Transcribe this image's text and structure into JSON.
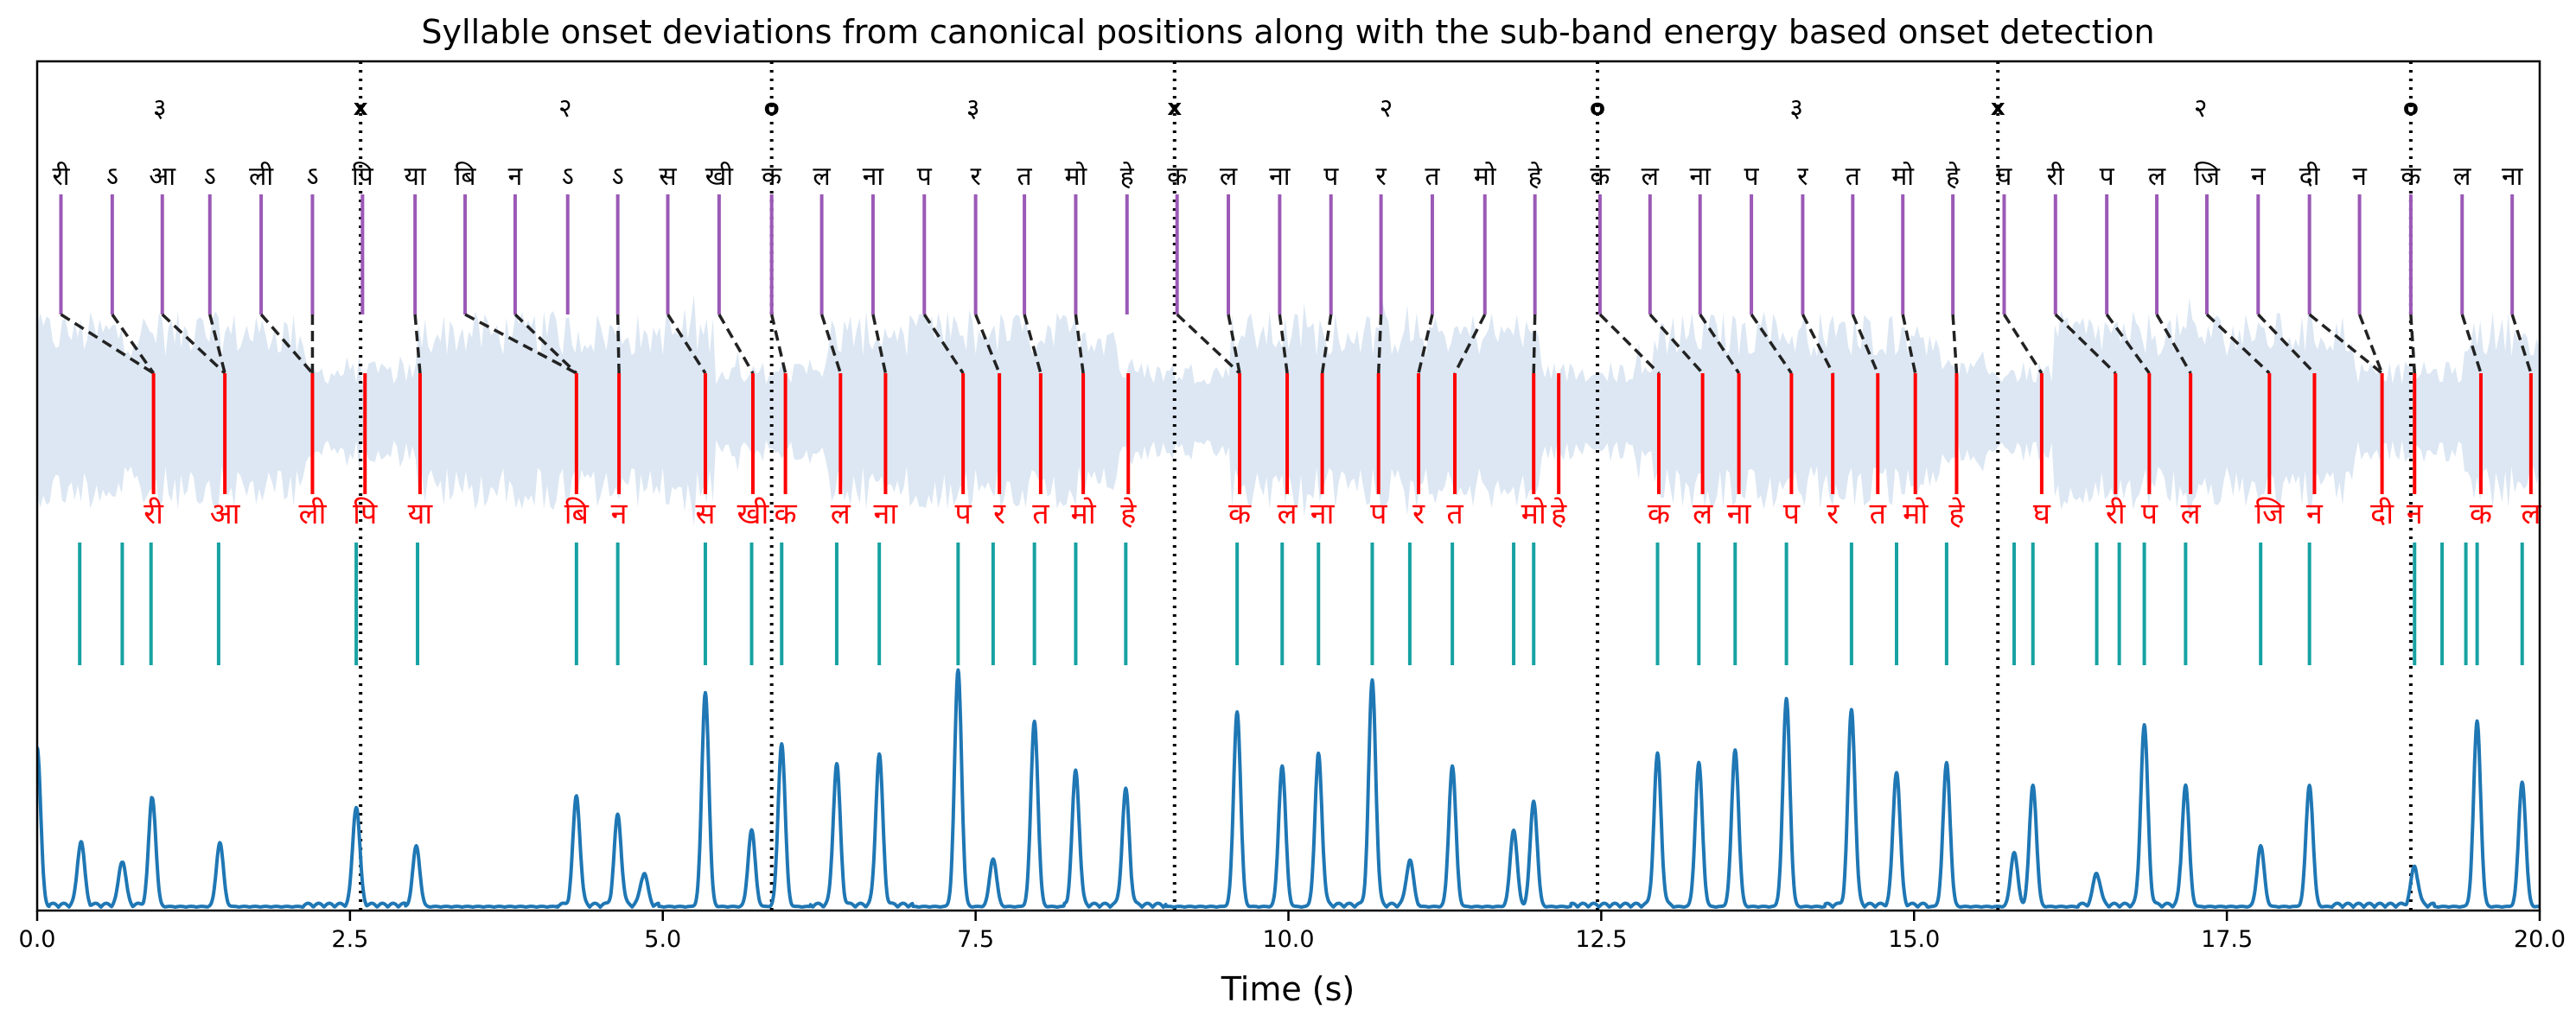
{
  "chart_data": {
    "type": "line",
    "title": "Syllable onset deviations from canonical positions along with the sub-band energy based onset detection",
    "xlabel": "Time (s)",
    "ylabel": "",
    "xlim": [
      0,
      20
    ],
    "xticks": [
      0,
      2.5,
      5,
      7.5,
      10,
      12.5,
      15,
      17.5,
      20
    ],
    "xtick_labels": [
      "0.0",
      "2.5",
      "5.0",
      "7.5",
      "10.0",
      "12.5",
      "15.0",
      "17.5",
      "20.0"
    ],
    "colors": {
      "waveform": "#dce7f3",
      "canonical_markers": "#9b59b6",
      "detected_markers": "#ff0000",
      "mismatch_links": "#222222",
      "onset_candidates": "#17a2a2",
      "onset_curve": "#1f77b4",
      "section_boundaries": "#000000"
    },
    "section_boundaries": [
      {
        "t": 2.585,
        "label": "x"
      },
      {
        "t": 5.87,
        "label": "o"
      },
      {
        "t": 9.09,
        "label": "x"
      },
      {
        "t": 12.47,
        "label": "o"
      },
      {
        "t": 15.67,
        "label": "x"
      },
      {
        "t": 18.97,
        "label": "o"
      }
    ],
    "taal_labels": [
      {
        "t": 0.98,
        "label": "३"
      },
      {
        "t": 4.22,
        "label": "२"
      },
      {
        "t": 7.48,
        "label": "३"
      },
      {
        "t": 10.78,
        "label": "२"
      },
      {
        "t": 14.06,
        "label": "३"
      },
      {
        "t": 17.29,
        "label": "२"
      }
    ],
    "canonical_syllables": [
      {
        "t": 0.19,
        "label": "री"
      },
      {
        "t": 0.6,
        "label": "ऽ"
      },
      {
        "t": 1.0,
        "label": "आ"
      },
      {
        "t": 1.38,
        "label": "ऽ"
      },
      {
        "t": 1.79,
        "label": "ली"
      },
      {
        "t": 2.2,
        "label": "ऽ"
      },
      {
        "t": 2.6,
        "label": "पि"
      },
      {
        "t": 3.02,
        "label": "या"
      },
      {
        "t": 3.42,
        "label": "बि"
      },
      {
        "t": 3.82,
        "label": "न"
      },
      {
        "t": 4.24,
        "label": "ऽ"
      },
      {
        "t": 4.64,
        "label": "ऽ"
      },
      {
        "t": 5.04,
        "label": "स"
      },
      {
        "t": 5.45,
        "label": "खी"
      },
      {
        "t": 5.87,
        "label": "क"
      },
      {
        "t": 6.27,
        "label": "ल"
      },
      {
        "t": 6.68,
        "label": "ना"
      },
      {
        "t": 7.09,
        "label": "प"
      },
      {
        "t": 7.5,
        "label": "र"
      },
      {
        "t": 7.89,
        "label": "त"
      },
      {
        "t": 8.3,
        "label": "मो"
      },
      {
        "t": 8.71,
        "label": "हे"
      },
      {
        "t": 9.11,
        "label": "क"
      },
      {
        "t": 9.52,
        "label": "ल"
      },
      {
        "t": 9.93,
        "label": "ना"
      },
      {
        "t": 10.34,
        "label": "प"
      },
      {
        "t": 10.74,
        "label": "र"
      },
      {
        "t": 11.15,
        "label": "त"
      },
      {
        "t": 11.57,
        "label": "मो"
      },
      {
        "t": 11.97,
        "label": "हे"
      },
      {
        "t": 12.49,
        "label": "क"
      },
      {
        "t": 12.89,
        "label": "ल"
      },
      {
        "t": 13.29,
        "label": "ना"
      },
      {
        "t": 13.7,
        "label": "प"
      },
      {
        "t": 14.11,
        "label": "र"
      },
      {
        "t": 14.51,
        "label": "त"
      },
      {
        "t": 14.91,
        "label": "मो"
      },
      {
        "t": 15.31,
        "label": "हे"
      },
      {
        "t": 15.72,
        "label": "घ"
      },
      {
        "t": 16.13,
        "label": "री"
      },
      {
        "t": 16.54,
        "label": "प"
      },
      {
        "t": 16.94,
        "label": "ल"
      },
      {
        "t": 17.34,
        "label": "जि"
      },
      {
        "t": 17.75,
        "label": "न"
      },
      {
        "t": 18.16,
        "label": "दी"
      },
      {
        "t": 18.56,
        "label": "न"
      },
      {
        "t": 18.97,
        "label": "क"
      },
      {
        "t": 19.38,
        "label": "ल"
      },
      {
        "t": 19.78,
        "label": "ना"
      }
    ],
    "detected_syllables": [
      {
        "t": 0.93,
        "label": "री"
      },
      {
        "t": 1.5,
        "label": "आ"
      },
      {
        "t": 2.2,
        "label": "ली"
      },
      {
        "t": 2.62,
        "label": "पि"
      },
      {
        "t": 3.06,
        "label": "या"
      },
      {
        "t": 4.31,
        "label": "बि"
      },
      {
        "t": 4.65,
        "label": "न"
      },
      {
        "t": 5.34,
        "label": "स"
      },
      {
        "t": 5.72,
        "label": "खी"
      },
      {
        "t": 5.98,
        "label": "क"
      },
      {
        "t": 6.42,
        "label": "ल"
      },
      {
        "t": 6.78,
        "label": "ना"
      },
      {
        "t": 7.4,
        "label": "प"
      },
      {
        "t": 7.69,
        "label": "र"
      },
      {
        "t": 8.02,
        "label": "त"
      },
      {
        "t": 8.36,
        "label": "मो"
      },
      {
        "t": 8.72,
        "label": "हे"
      },
      {
        "t": 9.61,
        "label": "क"
      },
      {
        "t": 9.99,
        "label": "ल"
      },
      {
        "t": 10.27,
        "label": "ना"
      },
      {
        "t": 10.72,
        "label": "प"
      },
      {
        "t": 11.04,
        "label": "र"
      },
      {
        "t": 11.33,
        "label": "त"
      },
      {
        "t": 11.96,
        "label": "मो"
      },
      {
        "t": 12.16,
        "label": "हे"
      },
      {
        "t": 12.96,
        "label": "क"
      },
      {
        "t": 13.31,
        "label": "ल"
      },
      {
        "t": 13.6,
        "label": "ना"
      },
      {
        "t": 14.02,
        "label": "प"
      },
      {
        "t": 14.35,
        "label": "र"
      },
      {
        "t": 14.71,
        "label": "त"
      },
      {
        "t": 15.01,
        "label": "मो"
      },
      {
        "t": 15.34,
        "label": "हे"
      },
      {
        "t": 16.02,
        "label": "घ"
      },
      {
        "t": 16.61,
        "label": "री"
      },
      {
        "t": 16.88,
        "label": "प"
      },
      {
        "t": 17.21,
        "label": "ल"
      },
      {
        "t": 17.84,
        "label": "जि"
      },
      {
        "t": 18.2,
        "label": "न"
      },
      {
        "t": 18.74,
        "label": "दी"
      },
      {
        "t": 19.0,
        "label": "न"
      },
      {
        "t": 19.53,
        "label": "क"
      },
      {
        "t": 19.93,
        "label": "ल"
      }
    ],
    "mismatch_links": [
      [
        0.19,
        0.93
      ],
      [
        0.6,
        0.93
      ],
      [
        1.0,
        1.5
      ],
      [
        1.38,
        1.5
      ],
      [
        1.79,
        2.2
      ],
      [
        2.2,
        2.2
      ],
      [
        3.02,
        3.06
      ],
      [
        3.42,
        4.31
      ],
      [
        3.82,
        4.31
      ],
      [
        4.64,
        4.65
      ],
      [
        5.04,
        5.34
      ],
      [
        5.45,
        5.72
      ],
      [
        5.87,
        5.98
      ],
      [
        6.27,
        6.42
      ],
      [
        6.68,
        6.78
      ],
      [
        7.09,
        7.4
      ],
      [
        7.5,
        7.69
      ],
      [
        7.89,
        8.02
      ],
      [
        8.3,
        8.36
      ],
      [
        9.11,
        9.61
      ],
      [
        9.52,
        9.61
      ],
      [
        9.93,
        9.99
      ],
      [
        10.34,
        10.27
      ],
      [
        10.74,
        10.72
      ],
      [
        11.15,
        11.04
      ],
      [
        11.57,
        11.33
      ],
      [
        11.97,
        11.96
      ],
      [
        12.49,
        12.96
      ],
      [
        12.89,
        13.31
      ],
      [
        13.29,
        13.6
      ],
      [
        13.7,
        14.02
      ],
      [
        14.11,
        14.35
      ],
      [
        14.51,
        14.71
      ],
      [
        14.91,
        15.01
      ],
      [
        15.31,
        15.34
      ],
      [
        15.72,
        16.02
      ],
      [
        16.13,
        16.61
      ],
      [
        16.54,
        16.88
      ],
      [
        16.94,
        17.21
      ],
      [
        17.34,
        17.84
      ],
      [
        17.75,
        18.2
      ],
      [
        18.16,
        18.74
      ],
      [
        18.56,
        18.74
      ],
      [
        18.97,
        19.0
      ],
      [
        19.38,
        19.53
      ],
      [
        19.78,
        19.93
      ]
    ],
    "onset_candidates": [
      0.34,
      0.68,
      0.91,
      1.45,
      2.55,
      3.04,
      4.31,
      4.64,
      5.34,
      5.71,
      5.95,
      6.39,
      6.73,
      7.36,
      7.64,
      7.97,
      8.3,
      8.7,
      9.59,
      9.95,
      10.24,
      10.67,
      10.97,
      11.31,
      11.8,
      11.96,
      12.95,
      13.28,
      13.57,
      13.98,
      14.5,
      14.86,
      15.26,
      15.8,
      15.95,
      16.46,
      16.64,
      16.84,
      17.17,
      17.77,
      18.16,
      19.0,
      19.22,
      19.41,
      19.5,
      19.86
    ],
    "onset_peaks": [
      {
        "t": 0.0,
        "h": 0.5
      },
      {
        "t": 0.35,
        "h": 0.2
      },
      {
        "t": 0.68,
        "h": 0.14
      },
      {
        "t": 0.92,
        "h": 0.34
      },
      {
        "t": 1.46,
        "h": 0.2
      },
      {
        "t": 2.55,
        "h": 0.31
      },
      {
        "t": 3.03,
        "h": 0.19
      },
      {
        "t": 4.31,
        "h": 0.34
      },
      {
        "t": 4.64,
        "h": 0.28
      },
      {
        "t": 4.85,
        "h": 0.1
      },
      {
        "t": 5.34,
        "h": 0.67
      },
      {
        "t": 5.71,
        "h": 0.24
      },
      {
        "t": 5.95,
        "h": 0.51
      },
      {
        "t": 6.39,
        "h": 0.44
      },
      {
        "t": 6.73,
        "h": 0.47
      },
      {
        "t": 7.36,
        "h": 0.74
      },
      {
        "t": 7.64,
        "h": 0.15
      },
      {
        "t": 7.97,
        "h": 0.58
      },
      {
        "t": 8.3,
        "h": 0.42
      },
      {
        "t": 8.7,
        "h": 0.36
      },
      {
        "t": 9.59,
        "h": 0.61
      },
      {
        "t": 9.95,
        "h": 0.44
      },
      {
        "t": 10.24,
        "h": 0.47
      },
      {
        "t": 10.67,
        "h": 0.7
      },
      {
        "t": 10.97,
        "h": 0.14
      },
      {
        "t": 11.31,
        "h": 0.44
      },
      {
        "t": 11.8,
        "h": 0.24
      },
      {
        "t": 11.96,
        "h": 0.33
      },
      {
        "t": 12.95,
        "h": 0.47
      },
      {
        "t": 13.28,
        "h": 0.45
      },
      {
        "t": 13.57,
        "h": 0.49
      },
      {
        "t": 13.98,
        "h": 0.65
      },
      {
        "t": 14.5,
        "h": 0.61
      },
      {
        "t": 14.86,
        "h": 0.42
      },
      {
        "t": 15.26,
        "h": 0.45
      },
      {
        "t": 15.8,
        "h": 0.17
      },
      {
        "t": 15.95,
        "h": 0.38
      },
      {
        "t": 16.46,
        "h": 0.1
      },
      {
        "t": 16.84,
        "h": 0.56
      },
      {
        "t": 17.17,
        "h": 0.38
      },
      {
        "t": 17.77,
        "h": 0.19
      },
      {
        "t": 18.16,
        "h": 0.38
      },
      {
        "t": 19.0,
        "h": 0.12
      },
      {
        "t": 19.5,
        "h": 0.58
      },
      {
        "t": 19.86,
        "h": 0.39
      }
    ]
  }
}
